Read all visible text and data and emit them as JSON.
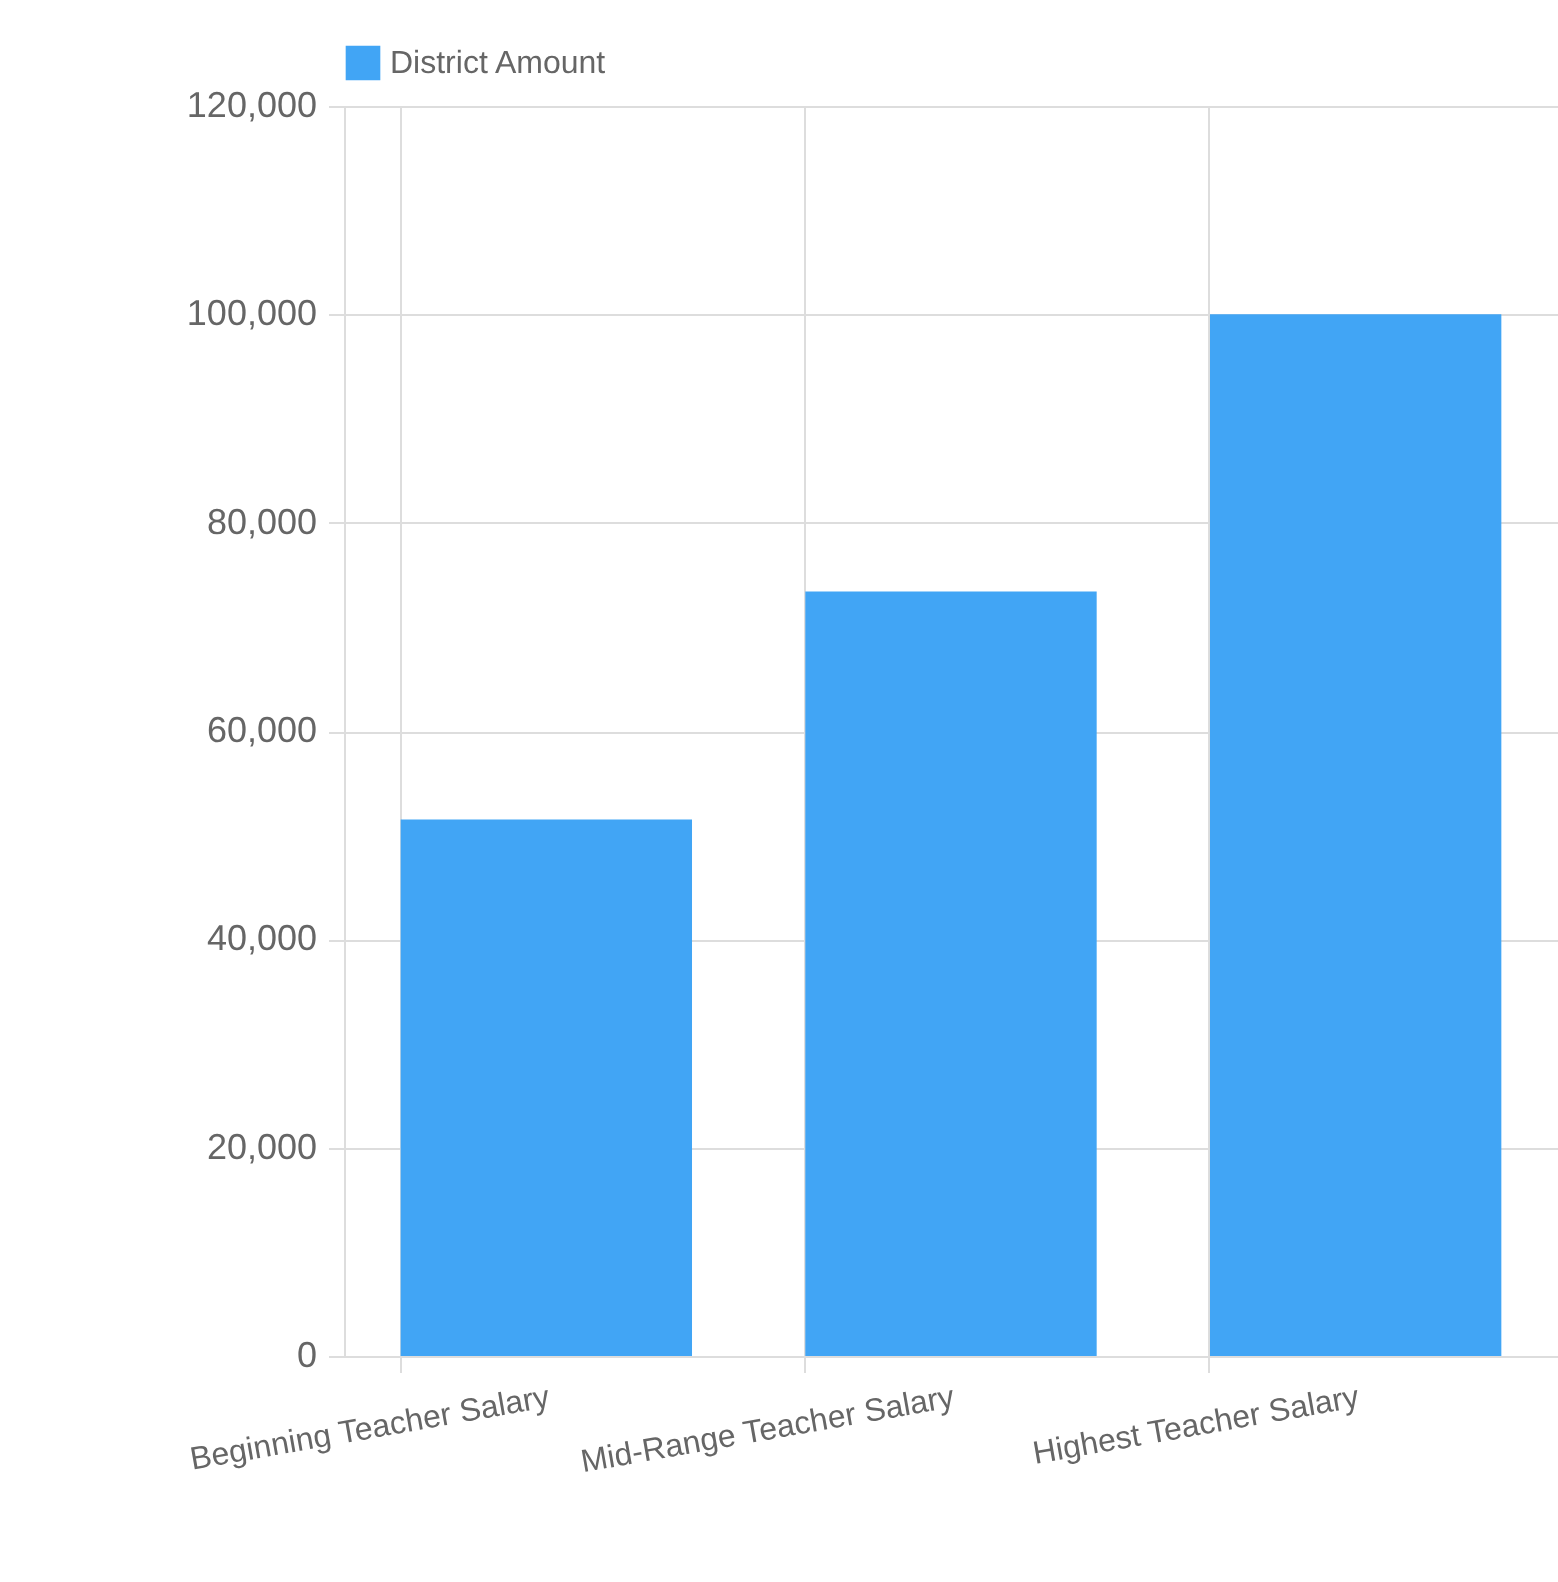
{
  "chart_data": {
    "type": "bar",
    "categories": [
      "Beginning Teacher Salary",
      "Mid-Range Teacher Salary",
      "Highest Teacher Salary"
    ],
    "series": [
      {
        "name": "District Amount",
        "color": "#41a5f5",
        "values": [
          51500,
          73400,
          100000
        ]
      }
    ],
    "ylim": [
      0,
      120000
    ],
    "yticks": [
      {
        "value": 0,
        "label": "0"
      },
      {
        "value": 20000,
        "label": "20,000"
      },
      {
        "value": 40000,
        "label": "40,000"
      },
      {
        "value": 60000,
        "label": "60,000"
      },
      {
        "value": 80000,
        "label": "80,000"
      },
      {
        "value": 100000,
        "label": "100,000"
      },
      {
        "value": 120000,
        "label": "120,000"
      }
    ],
    "grid": true,
    "legend": "top"
  }
}
